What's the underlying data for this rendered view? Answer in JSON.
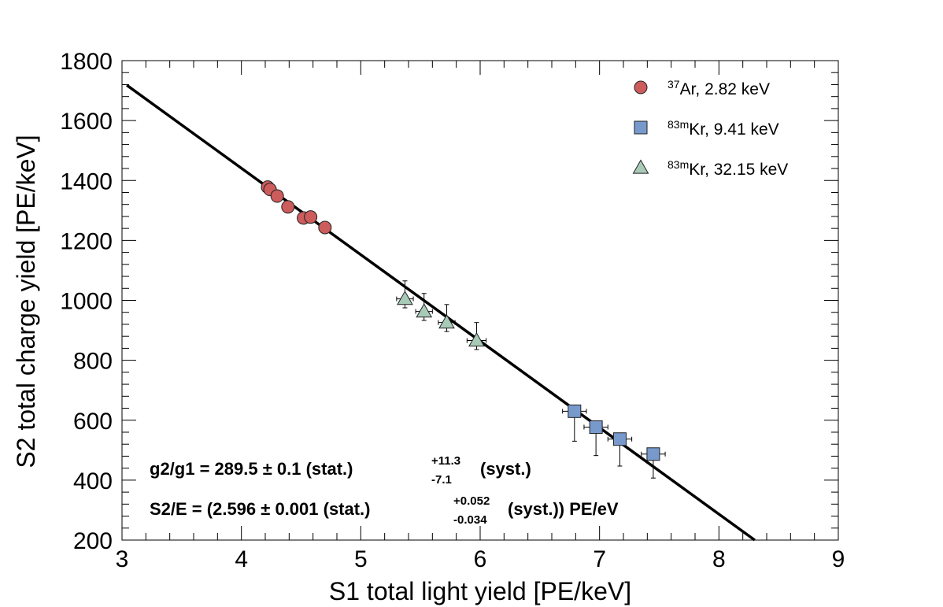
{
  "chart_data": {
    "type": "scatter",
    "xlabel": "S1 total light yield [PE/keV]",
    "ylabel": "S2 total charge yield [PE/keV]",
    "xlim": [
      3,
      9
    ],
    "ylim": [
      200,
      1800
    ],
    "xticks": [
      3,
      4,
      5,
      6,
      7,
      8,
      9
    ],
    "yticks": [
      200,
      400,
      600,
      800,
      1000,
      1200,
      1400,
      1600,
      1800
    ],
    "fit_line": {
      "x": [
        3.04,
        8.3
      ],
      "y": [
        1718,
        200
      ]
    },
    "series": [
      {
        "name": "37Ar, 2.82 keV",
        "isotope_sup": "37",
        "isotope": "Ar",
        "energy": ", 2.82 keV",
        "marker": "circle",
        "color": "#cd5c5c",
        "points": [
          {
            "x": 4.22,
            "y": 1378,
            "xerr": 0.03,
            "yerr": 8
          },
          {
            "x": 4.24,
            "y": 1370,
            "xerr": 0.03,
            "yerr": 8
          },
          {
            "x": 4.3,
            "y": 1348,
            "xerr": 0.03,
            "yerr": 8
          },
          {
            "x": 4.39,
            "y": 1312,
            "xerr": 0.03,
            "yerr": 8
          },
          {
            "x": 4.52,
            "y": 1275,
            "xerr": 0.03,
            "yerr": 8
          },
          {
            "x": 4.58,
            "y": 1278,
            "xerr": 0.03,
            "yerr": 8
          },
          {
            "x": 4.7,
            "y": 1243,
            "xerr": 0.05,
            "yerr": 8
          }
        ]
      },
      {
        "name": "83mKr, 9.41 keV",
        "isotope_sup": "83m",
        "isotope": "Kr",
        "energy": ", 9.41 keV",
        "marker": "square",
        "color": "#7799cc",
        "points": [
          {
            "x": 6.79,
            "y": 630,
            "xerr": 0.1,
            "yerr_lo": 100,
            "yerr_hi": 10
          },
          {
            "x": 6.97,
            "y": 577,
            "xerr": 0.1,
            "yerr_lo": 95,
            "yerr_hi": 10
          },
          {
            "x": 7.17,
            "y": 537,
            "xerr": 0.1,
            "yerr_lo": 90,
            "yerr_hi": 10
          },
          {
            "x": 7.45,
            "y": 487,
            "xerr": 0.1,
            "yerr_lo": 80,
            "yerr_hi": 10
          }
        ]
      },
      {
        "name": "83mKr, 32.15 keV",
        "isotope_sup": "83m",
        "isotope": "Kr",
        "energy": ", 32.15 keV",
        "marker": "triangle",
        "color": "#a8cbb8",
        "points": [
          {
            "x": 5.37,
            "y": 1005,
            "xerr": 0.07,
            "yerr_lo": 30,
            "yerr_hi": 60
          },
          {
            "x": 5.53,
            "y": 963,
            "xerr": 0.07,
            "yerr_lo": 30,
            "yerr_hi": 60
          },
          {
            "x": 5.72,
            "y": 926,
            "xerr": 0.07,
            "yerr_lo": 30,
            "yerr_hi": 60
          },
          {
            "x": 5.97,
            "y": 866,
            "xerr": 0.08,
            "yerr_lo": 30,
            "yerr_hi": 60
          }
        ]
      }
    ],
    "annotations": [
      {
        "pre": "g2/g1 = 289.5 ± 0.1 (stat.)",
        "sup": "+11.3",
        "sub": "-7.1",
        "post": "(syst.)"
      },
      {
        "pre": "S2/E = (2.596 ± 0.001 (stat.)",
        "sup": "+0.052",
        "sub": "-0.034",
        "post": "(syst.)) PE/eV"
      }
    ],
    "legend_position": "top-right"
  }
}
